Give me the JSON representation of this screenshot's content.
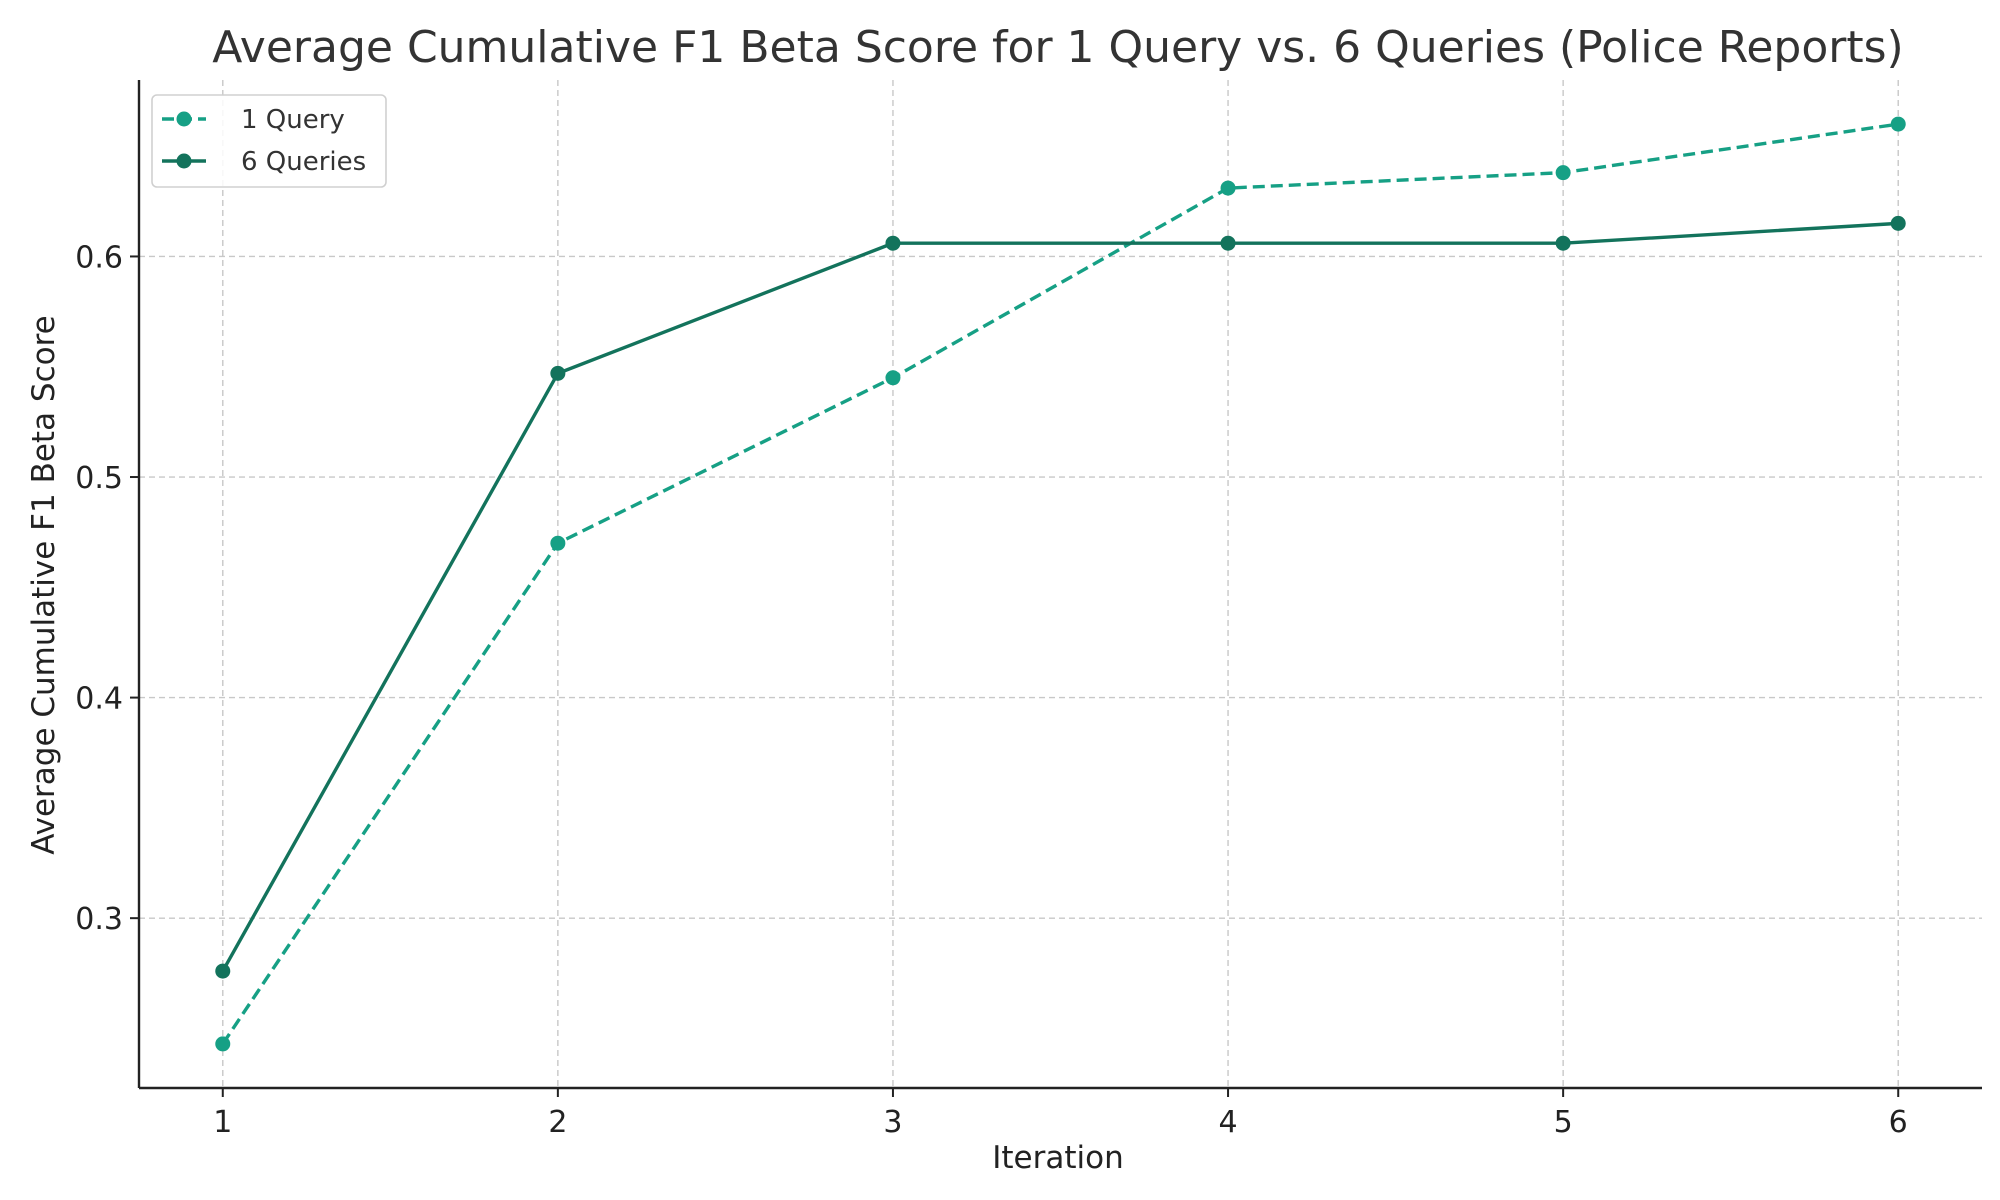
{
  "chart_data": {
    "type": "line",
    "title": "Average Cumulative F1 Beta Score for 1 Query vs. 6 Queries (Police Reports)",
    "xlabel": "Iteration",
    "ylabel": "Average Cumulative F1 Beta Score",
    "x": [
      1,
      2,
      3,
      4,
      5,
      6
    ],
    "xlim": [
      0.75,
      6.25
    ],
    "ylim": [
      0.223,
      0.68
    ],
    "x_ticks": [
      1,
      2,
      3,
      4,
      5,
      6
    ],
    "x_tick_labels": [
      "1",
      "2",
      "3",
      "4",
      "5",
      "6"
    ],
    "y_ticks": [
      0.3,
      0.4,
      0.5,
      0.6
    ],
    "y_tick_labels": [
      "0.3",
      "0.4",
      "0.5",
      "0.6"
    ],
    "grid": true,
    "legend_position": "top-left",
    "series": [
      {
        "name": "1 Query",
        "values": [
          0.243,
          0.47,
          0.545,
          0.631,
          0.638,
          0.66
        ],
        "color": "#16a085",
        "line_style": "dashed"
      },
      {
        "name": "6 Queries",
        "values": [
          0.276,
          0.547,
          0.606,
          0.606,
          0.606,
          0.615
        ],
        "color": "#13735c",
        "line_style": "solid"
      }
    ]
  }
}
